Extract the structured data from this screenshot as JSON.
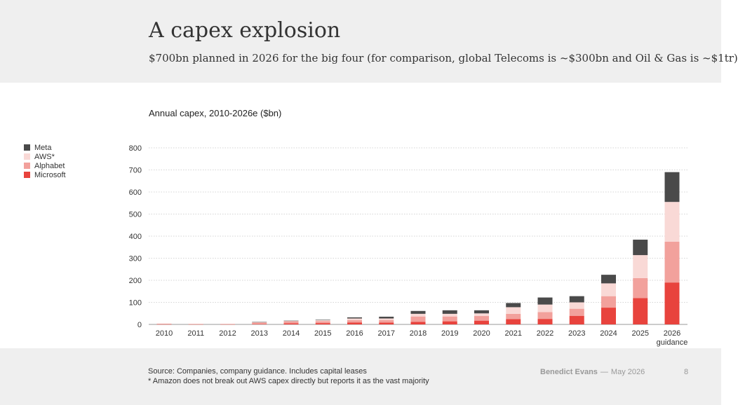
{
  "header": {
    "title": "A capex explosion",
    "subtitle": "$700bn planned in 2026 for the big four (for comparison, global Telecoms is ~$300bn and Oil & Gas is ~$1tr)"
  },
  "footer": {
    "source_line1": "Source: Companies, company guidance. Includes capital leases",
    "source_line2": "*  Amazon does not break out AWS capex directly but reports it as the vast majority",
    "author": "Benedict Evans",
    "date": "May 2026",
    "page_number": "8"
  },
  "colors": {
    "Meta": "#4a4a4a",
    "AWS*": "#f9d9d6",
    "Alphabet": "#f2a19c",
    "Microsoft": "#e8433d"
  },
  "chart_data": {
    "type": "bar",
    "stacked": true,
    "title": "Annual capex, 2010-2026e ($bn)",
    "categories": [
      "2010",
      "2011",
      "2012",
      "2013",
      "2014",
      "2015",
      "2016",
      "2017",
      "2018",
      "2019",
      "2020",
      "2021",
      "2022",
      "2023",
      "2024",
      "2025",
      "2026 guidance"
    ],
    "series": [
      {
        "name": "Microsoft",
        "values": [
          1,
          1,
          1,
          2,
          5,
          6,
          9,
          8,
          12,
          14,
          17,
          24,
          25,
          39,
          76,
          119,
          190
        ]
      },
      {
        "name": "Alphabet",
        "values": [
          2,
          1,
          1,
          7,
          9,
          9,
          10,
          12,
          24,
          22,
          21,
          24,
          31,
          32,
          52,
          91,
          185
        ]
      },
      {
        "name": "AWS*",
        "values": [
          1,
          1,
          1,
          1,
          2,
          4,
          8,
          7,
          12,
          12,
          12,
          30,
          34,
          29,
          58,
          104,
          180
        ]
      },
      {
        "name": "Meta",
        "values": [
          0,
          0,
          0,
          1,
          1,
          2,
          5,
          8,
          13,
          16,
          14,
          19,
          32,
          28,
          39,
          70,
          135
        ]
      }
    ],
    "legend_order": [
      "Meta",
      "AWS*",
      "Alphabet",
      "Microsoft"
    ],
    "legend_position": "left",
    "ylim": [
      0,
      800
    ],
    "yticks": [
      0,
      100,
      200,
      300,
      400,
      500,
      600,
      700,
      800
    ],
    "grid": true,
    "xlabel": "",
    "ylabel": ""
  }
}
